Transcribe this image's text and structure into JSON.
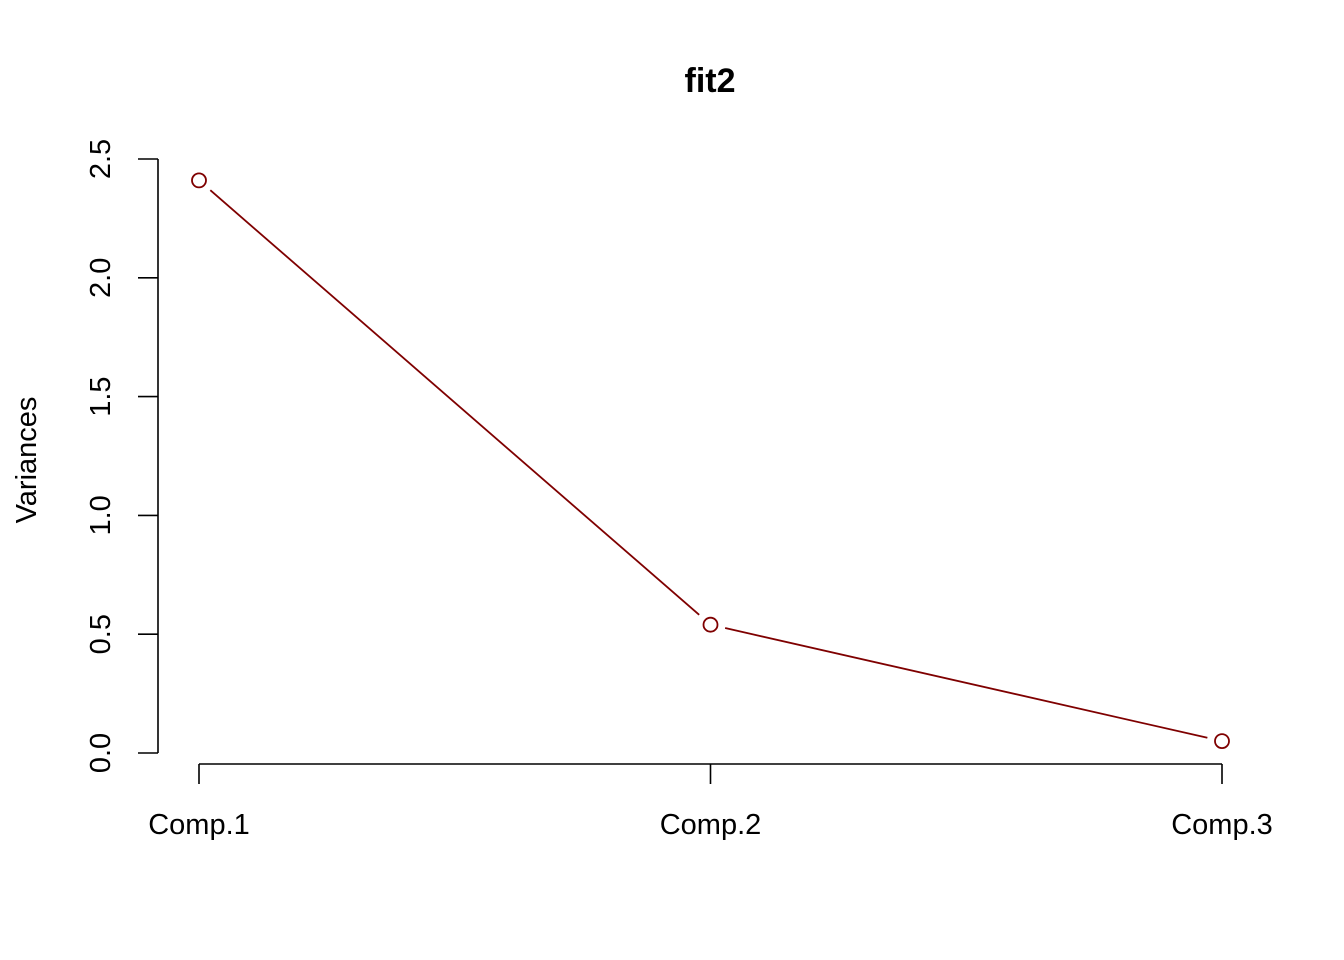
{
  "chart_data": {
    "type": "line",
    "title": "fit2",
    "xlabel": "",
    "ylabel": "Variances",
    "categories": [
      "Comp.1",
      "Comp.2",
      "Comp.3"
    ],
    "series": [
      {
        "values": [
          2.41,
          0.54,
          0.05
        ],
        "color": "#7f0000"
      }
    ],
    "ylim": [
      0,
      2.5
    ],
    "yticks": [
      0.0,
      0.5,
      1.0,
      1.5,
      2.0,
      2.5
    ],
    "ytick_labels": [
      "0.0",
      "0.5",
      "1.0",
      "1.5",
      "2.0",
      "2.5"
    ],
    "grid": false,
    "legend": "none",
    "marker": "open-circle"
  }
}
